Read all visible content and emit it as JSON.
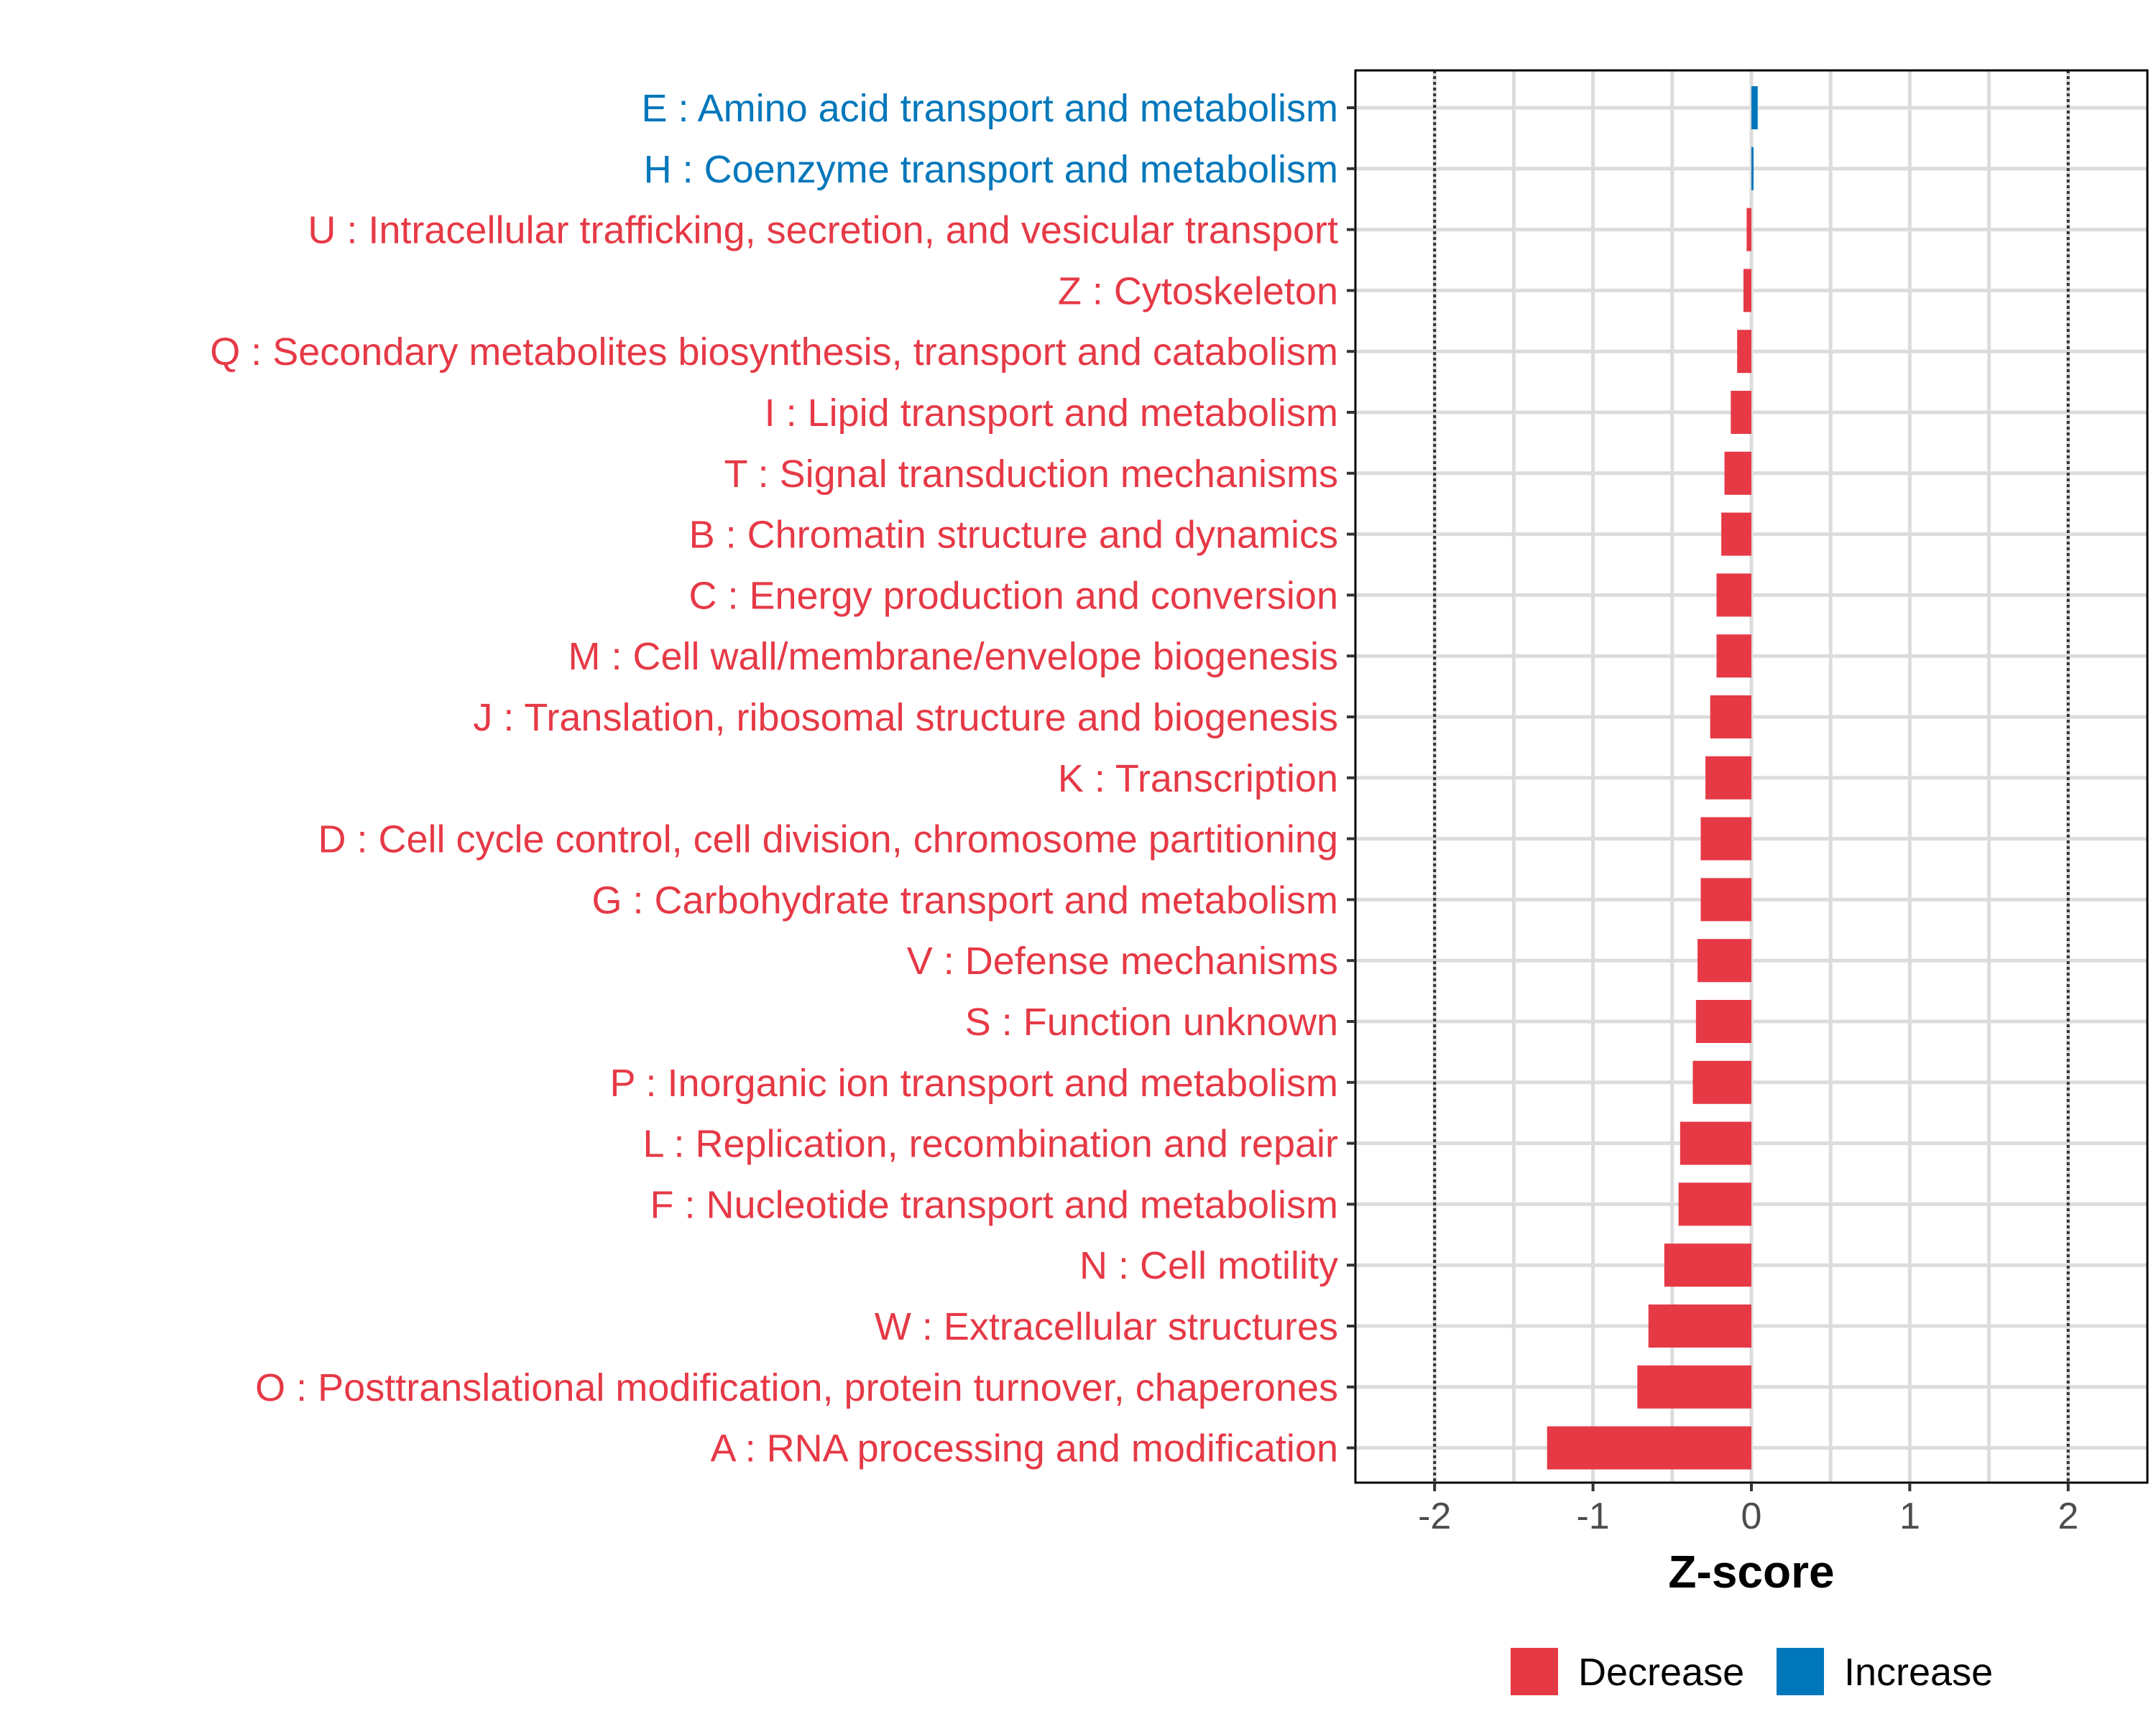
{
  "chart_data": {
    "type": "bar",
    "orientation": "horizontal",
    "title": "",
    "xlabel": "Z-score",
    "ylabel": "",
    "xlim": [
      -2.5,
      2.5
    ],
    "x_ticks": [
      -2,
      -1,
      0,
      1,
      2
    ],
    "x_tick_labels": [
      "-2",
      "-1",
      "0",
      "1",
      "2"
    ],
    "reference_lines": [
      -2,
      2
    ],
    "grid": true,
    "legend_position": "bottom",
    "colors": {
      "decrease": "#e63946",
      "increase": "#0077bb"
    },
    "legend": [
      {
        "key": "decrease",
        "label": "Decrease"
      },
      {
        "key": "increase",
        "label": "Increase"
      }
    ],
    "categories": [
      "E : Amino acid transport and metabolism",
      "H : Coenzyme transport and metabolism",
      "U : Intracellular trafficking, secretion, and vesicular transport",
      "Z : Cytoskeleton",
      "Q : Secondary metabolites biosynthesis, transport and catabolism",
      "I : Lipid transport and metabolism",
      "T : Signal transduction mechanisms",
      "B : Chromatin structure and dynamics",
      "C : Energy production and conversion",
      "M : Cell wall/membrane/envelope biogenesis",
      "J : Translation, ribosomal structure and biogenesis",
      "K : Transcription",
      "D : Cell cycle control, cell division, chromosome partitioning",
      "G : Carbohydrate transport and metabolism",
      "V : Defense mechanisms",
      "S : Function unknown",
      "P : Inorganic ion transport and metabolism",
      "L : Replication, recombination and repair",
      "F : Nucleotide transport and metabolism",
      "N : Cell motility",
      "W : Extracellular structures",
      "O : Posttranslational modification, protein turnover, chaperones",
      "A : RNA processing and modification"
    ],
    "values": [
      0.04,
      0.01,
      -0.03,
      -0.05,
      -0.09,
      -0.13,
      -0.17,
      -0.19,
      -0.22,
      -0.22,
      -0.26,
      -0.29,
      -0.32,
      -0.32,
      -0.34,
      -0.35,
      -0.37,
      -0.45,
      -0.46,
      -0.55,
      -0.65,
      -0.72,
      -1.29
    ],
    "direction": [
      "increase",
      "increase",
      "decrease",
      "decrease",
      "decrease",
      "decrease",
      "decrease",
      "decrease",
      "decrease",
      "decrease",
      "decrease",
      "decrease",
      "decrease",
      "decrease",
      "decrease",
      "decrease",
      "decrease",
      "decrease",
      "decrease",
      "decrease",
      "decrease",
      "decrease",
      "decrease"
    ]
  }
}
